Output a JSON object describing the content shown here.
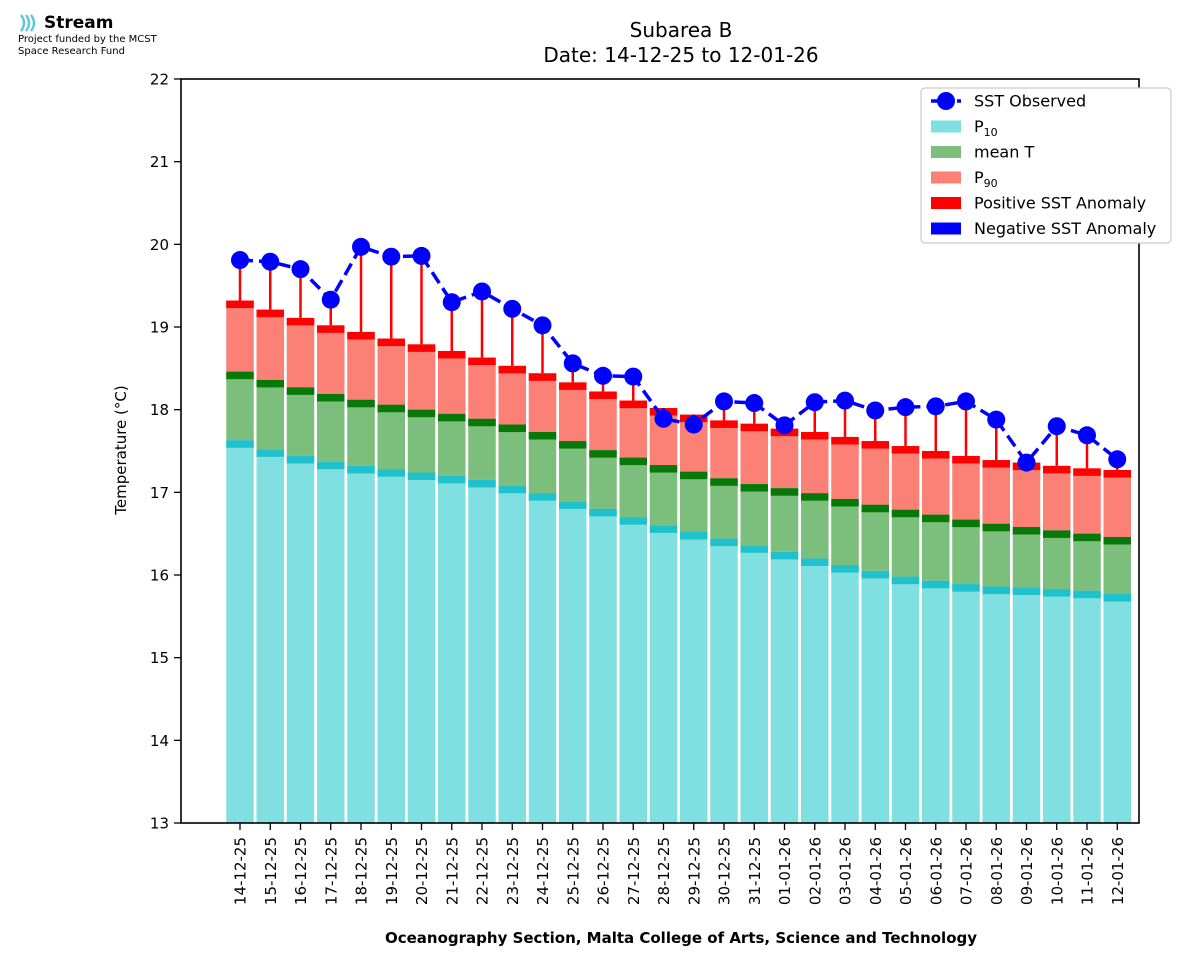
{
  "brand": {
    "name": "Stream",
    "line1": "Project funded by the MCST",
    "line2": "Space Research Fund",
    "color": "#5ec8d0"
  },
  "footer": "Oceanography Section, Malta College of Arts, Science and Technology",
  "chart_data": {
    "type": "bar",
    "title": "Subarea B",
    "subtitle": "Date: 14-12-25 to 12-01-26",
    "xlabel": "",
    "ylabel": "Temperature (°C)",
    "ylim": [
      13,
      22
    ],
    "yticks": [
      "13",
      "14",
      "15",
      "16",
      "17",
      "18",
      "19",
      "20",
      "21",
      "22"
    ],
    "legend_position": "top-right",
    "colors": {
      "p10": "#80dfe0",
      "p10_cap": "#1fc2cc",
      "mean": "#7cbf7c",
      "mean_cap": "#087808",
      "p90": "#fb8076",
      "p90_cap": "#ff0000",
      "observed": "#0000ff",
      "positive_anomaly": "#ff0000",
      "negative_anomaly": "#0000ff"
    },
    "legend": [
      {
        "key": "observed",
        "label": "SST Observed",
        "sub": ""
      },
      {
        "key": "p10",
        "label": "P",
        "sub": "10"
      },
      {
        "key": "mean",
        "label": "mean T",
        "sub": ""
      },
      {
        "key": "p90",
        "label": "P",
        "sub": "90"
      },
      {
        "key": "positive_anomaly",
        "label": "Positive SST Anomaly",
        "sub": ""
      },
      {
        "key": "negative_anomaly",
        "label": "Negative SST Anomaly",
        "sub": ""
      }
    ],
    "categories": [
      "14-12-25",
      "15-12-25",
      "16-12-25",
      "17-12-25",
      "18-12-25",
      "19-12-25",
      "20-12-25",
      "21-12-25",
      "22-12-25",
      "23-12-25",
      "24-12-25",
      "25-12-25",
      "26-12-25",
      "27-12-25",
      "28-12-25",
      "29-12-25",
      "30-12-25",
      "31-12-25",
      "01-01-26",
      "02-01-26",
      "03-01-26",
      "04-01-26",
      "05-01-26",
      "06-01-26",
      "07-01-26",
      "08-01-26",
      "09-01-26",
      "10-01-26",
      "11-01-26",
      "12-01-26"
    ],
    "series": [
      {
        "name": "P10",
        "values": [
          17.63,
          17.52,
          17.44,
          17.37,
          17.32,
          17.28,
          17.24,
          17.2,
          17.15,
          17.08,
          16.99,
          16.89,
          16.8,
          16.7,
          16.6,
          16.52,
          16.44,
          16.36,
          16.28,
          16.2,
          16.12,
          16.05,
          15.98,
          15.93,
          15.89,
          15.86,
          15.85,
          15.83,
          15.81,
          15.77
        ]
      },
      {
        "name": "mean T",
        "values": [
          18.46,
          18.36,
          18.27,
          18.19,
          18.12,
          18.06,
          18.0,
          17.95,
          17.89,
          17.82,
          17.73,
          17.62,
          17.51,
          17.42,
          17.33,
          17.25,
          17.17,
          17.1,
          17.05,
          16.99,
          16.92,
          16.85,
          16.79,
          16.73,
          16.67,
          16.62,
          16.58,
          16.54,
          16.5,
          16.46
        ]
      },
      {
        "name": "P90",
        "values": [
          19.32,
          19.21,
          19.11,
          19.02,
          18.94,
          18.86,
          18.79,
          18.71,
          18.63,
          18.53,
          18.44,
          18.33,
          18.22,
          18.11,
          18.02,
          17.94,
          17.87,
          17.83,
          17.77,
          17.73,
          17.67,
          17.62,
          17.56,
          17.5,
          17.44,
          17.39,
          17.36,
          17.32,
          17.29,
          17.27
        ]
      },
      {
        "name": "SST Observed",
        "values": [
          19.81,
          19.79,
          19.7,
          19.33,
          19.97,
          19.85,
          19.86,
          19.3,
          19.43,
          19.22,
          19.02,
          18.56,
          18.41,
          18.4,
          17.89,
          17.82,
          18.1,
          18.08,
          17.81,
          18.09,
          18.11,
          17.99,
          18.03,
          18.04,
          18.1,
          17.88,
          17.36,
          17.8,
          17.69,
          17.4
        ]
      }
    ]
  }
}
